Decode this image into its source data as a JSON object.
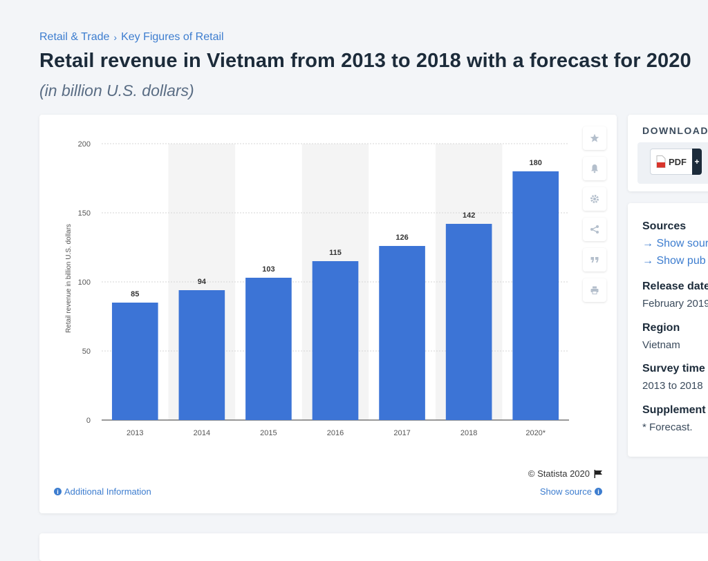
{
  "breadcrumb": {
    "items": [
      "Retail & Trade",
      "Key Figures of Retail"
    ],
    "separator": "›"
  },
  "title": "Retail revenue in Vietnam from 2013 to 2018 with a forecast for 2020",
  "subtitle": "(in billion U.S. dollars)",
  "chart_data": {
    "type": "bar",
    "categories": [
      "2013",
      "2014",
      "2015",
      "2016",
      "2017",
      "2018",
      "2020*"
    ],
    "values": [
      85,
      94,
      103,
      115,
      126,
      142,
      180
    ],
    "data_labels": [
      "85",
      "94",
      "103",
      "115",
      "126",
      "142",
      "180"
    ],
    "ylabel": "Retail revenue in billion U.S. dollars",
    "xlabel": "",
    "ylim": [
      0,
      200
    ],
    "yticks": [
      0,
      50,
      100,
      150,
      200
    ],
    "grid": true,
    "bar_color": "#3c74d6",
    "alt_band_color": "#f4f4f4"
  },
  "toolbar": {
    "icons": [
      "star-icon",
      "bell-icon",
      "gear-icon",
      "share-icon",
      "quote-icon",
      "print-icon"
    ]
  },
  "credit": "© Statista 2020",
  "additional_info": "Additional Information",
  "show_source": "Show source",
  "download": {
    "title": "DOWNLOAD",
    "pdf_label": "PDF",
    "plus": "+"
  },
  "info": {
    "sources_heading": "Sources",
    "show_source_link": "→ Show sour",
    "show_pub_link": "→ Show pub",
    "release_heading": "Release date",
    "release_value": "February 2019",
    "region_heading": "Region",
    "region_value": "Vietnam",
    "survey_heading": "Survey time",
    "survey_value": "2013 to 2018",
    "supplement_heading": "Supplement",
    "supplement_value": "* Forecast."
  },
  "colors": {
    "accent": "#3d7dcf",
    "title": "#1c2b3a",
    "bar": "#3c74d6"
  }
}
